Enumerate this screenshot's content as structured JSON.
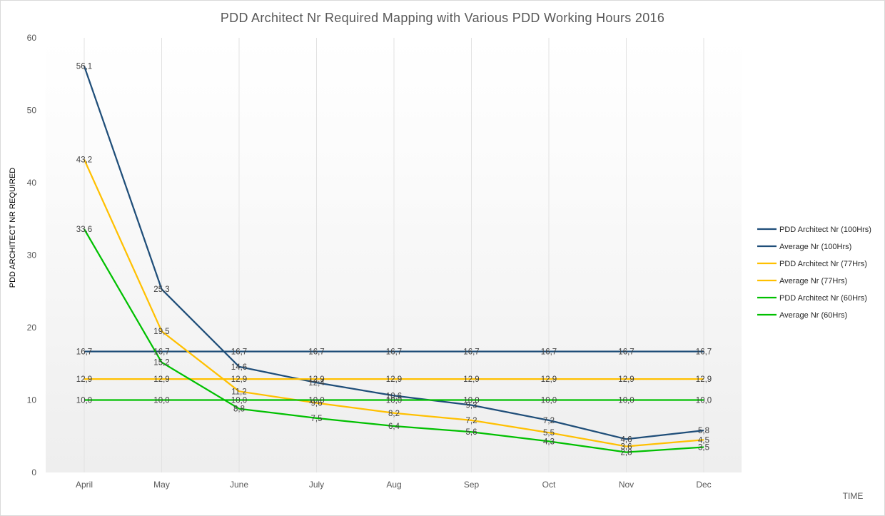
{
  "chart_data": {
    "type": "line",
    "title": "PDD Architect Nr Required Mapping with Various PDD Working Hours 2016",
    "xlabel": "TIME",
    "ylabel": "PDD ARCHITECT NR REQUIRED",
    "categories": [
      "April",
      "May",
      "June",
      "July",
      "Aug",
      "Sep",
      "Oct",
      "Nov",
      "Dec"
    ],
    "ylim": [
      0,
      60
    ],
    "yticks": [
      "0",
      "10",
      "20",
      "30",
      "40",
      "50",
      "60"
    ],
    "legend_position": "right",
    "series": [
      {
        "name": "PDD Architect Nr (100Hrs)",
        "color": "#1f4e79",
        "values": [
          56.1,
          25.3,
          14.6,
          12.4,
          10.6,
          9.3,
          7.2,
          4.6,
          5.8
        ],
        "labels": [
          "56,1",
          "25,3",
          "14,6",
          "12,4",
          "10,6",
          "9,3",
          "7,2",
          "4,6",
          "5,8"
        ]
      },
      {
        "name": "Average Nr (100Hrs)",
        "color": "#1f4e79",
        "values": [
          16.7,
          16.7,
          16.7,
          16.7,
          16.7,
          16.7,
          16.7,
          16.7,
          16.7
        ],
        "labels": [
          "16,7",
          "16,7",
          "16,7",
          "16,7",
          "16,7",
          "16,7",
          "16,7",
          "16,7",
          "16,7"
        ]
      },
      {
        "name": "PDD Architect Nr (77Hrs)",
        "color": "#ffc000",
        "values": [
          43.2,
          19.5,
          11.2,
          9.6,
          8.2,
          7.2,
          5.5,
          3.6,
          4.5
        ],
        "labels": [
          "43,2",
          "19,5",
          "11,2",
          "9,6",
          "8,2",
          "7,2",
          "5,5",
          "3,6",
          "4,5"
        ]
      },
      {
        "name": "Average Nr (77Hrs)",
        "color": "#ffc000",
        "values": [
          12.9,
          12.9,
          12.9,
          12.9,
          12.9,
          12.9,
          12.9,
          12.9,
          12.9
        ],
        "labels": [
          "12,9",
          "12,9",
          "12,9",
          "12,9",
          "12,9",
          "12,9",
          "12,9",
          "12,9",
          "12,9"
        ]
      },
      {
        "name": "PDD Architect Nr (60Hrs)",
        "color": "#00c000",
        "values": [
          33.6,
          15.2,
          8.8,
          7.5,
          6.4,
          5.6,
          4.3,
          2.8,
          3.5
        ],
        "labels": [
          "33,6",
          "15,2",
          "8,8",
          "7,5",
          "6,4",
          "5,6",
          "4,3",
          "2,8",
          "3,5"
        ]
      },
      {
        "name": "Average Nr (60Hrs)",
        "color": "#00c000",
        "values": [
          10.0,
          10.0,
          10.0,
          10.0,
          10.0,
          10.0,
          10.0,
          10.0,
          10.0
        ],
        "labels": [
          "10,0",
          "10,0",
          "10,0",
          "10,0",
          "10,0",
          "10,0",
          "10,0",
          "10,0",
          "10,0"
        ]
      }
    ]
  }
}
